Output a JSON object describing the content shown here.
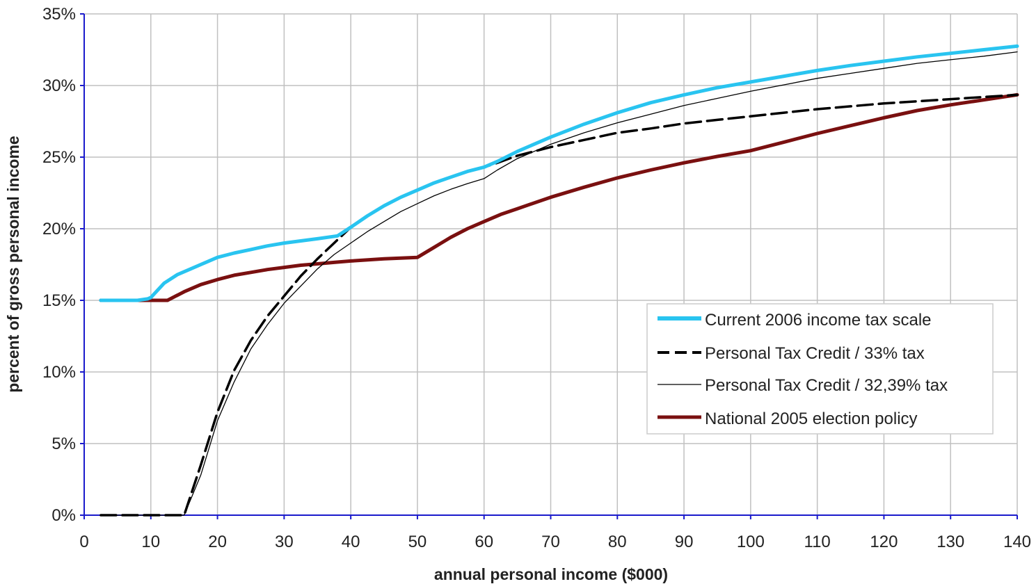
{
  "chart_data": {
    "type": "line",
    "xlabel": "annual personal income ($000)",
    "ylabel": "percent of gross personal income",
    "xlim": [
      0,
      140
    ],
    "ylim": [
      0,
      35
    ],
    "x_ticks": [
      0,
      10,
      20,
      30,
      40,
      50,
      60,
      70,
      80,
      90,
      100,
      110,
      120,
      130,
      140
    ],
    "y_ticks": [
      0,
      5,
      10,
      15,
      20,
      25,
      30,
      35
    ],
    "y_tick_labels": [
      "0%",
      "5%",
      "10%",
      "15%",
      "20%",
      "25%",
      "30%",
      "35%"
    ],
    "grid": true,
    "legend_position": "lower-right",
    "series": [
      {
        "name": "Current 2006 income tax scale",
        "color": "#29c4f0",
        "style": "solid-thick",
        "points": [
          [
            2.5,
            15
          ],
          [
            5,
            15
          ],
          [
            8,
            15
          ],
          [
            9.5,
            15.1
          ],
          [
            10,
            15.2
          ],
          [
            12,
            16.2
          ],
          [
            14,
            16.8
          ],
          [
            16,
            17.2
          ],
          [
            18,
            17.6
          ],
          [
            20,
            18
          ],
          [
            22.5,
            18.3
          ],
          [
            25,
            18.55
          ],
          [
            27.5,
            18.8
          ],
          [
            30,
            19
          ],
          [
            32.5,
            19.15
          ],
          [
            35,
            19.3
          ],
          [
            38,
            19.5
          ],
          [
            40,
            20.1
          ],
          [
            42.5,
            20.9
          ],
          [
            45,
            21.6
          ],
          [
            47.5,
            22.2
          ],
          [
            50,
            22.7
          ],
          [
            52.5,
            23.2
          ],
          [
            55,
            23.6
          ],
          [
            57.5,
            24
          ],
          [
            60,
            24.3
          ],
          [
            62,
            24.7
          ],
          [
            65,
            25.4
          ],
          [
            70,
            26.4
          ],
          [
            75,
            27.3
          ],
          [
            80,
            28.1
          ],
          [
            85,
            28.8
          ],
          [
            90,
            29.35
          ],
          [
            95,
            29.85
          ],
          [
            100,
            30.25
          ],
          [
            105,
            30.65
          ],
          [
            110,
            31.05
          ],
          [
            115,
            31.4
          ],
          [
            120,
            31.7
          ],
          [
            125,
            32
          ],
          [
            130,
            32.25
          ],
          [
            135,
            32.5
          ],
          [
            140,
            32.75
          ]
        ]
      },
      {
        "name": "Personal Tax Credit / 33% tax",
        "color": "#000000",
        "style": "dashed",
        "points": [
          [
            2.5,
            0
          ],
          [
            5,
            0
          ],
          [
            10,
            0
          ],
          [
            15,
            0
          ],
          [
            17.5,
            3.5
          ],
          [
            20,
            7.2
          ],
          [
            22.5,
            10.1
          ],
          [
            25,
            12.2
          ],
          [
            27.5,
            13.9
          ],
          [
            30,
            15.3
          ],
          [
            32.5,
            16.7
          ],
          [
            35,
            17.9
          ],
          [
            37.5,
            19
          ],
          [
            40,
            20.1
          ],
          [
            42.5,
            20.9
          ],
          [
            45,
            21.6
          ],
          [
            47.5,
            22.2
          ],
          [
            50,
            22.7
          ],
          [
            52.5,
            23.2
          ],
          [
            55,
            23.6
          ],
          [
            57.5,
            24
          ],
          [
            60,
            24.3
          ],
          [
            62,
            24.6
          ],
          [
            65,
            25.1
          ],
          [
            70,
            25.7
          ],
          [
            75,
            26.2
          ],
          [
            80,
            26.7
          ],
          [
            85,
            27
          ],
          [
            90,
            27.35
          ],
          [
            95,
            27.6
          ],
          [
            100,
            27.85
          ],
          [
            105,
            28.1
          ],
          [
            110,
            28.35
          ],
          [
            115,
            28.55
          ],
          [
            120,
            28.75
          ],
          [
            125,
            28.9
          ],
          [
            130,
            29.05
          ],
          [
            135,
            29.2
          ],
          [
            140,
            29.35
          ]
        ]
      },
      {
        "name": "Personal Tax Credit / 32,39% tax",
        "color": "#000000",
        "style": "solid-thin",
        "points": [
          [
            2.5,
            0
          ],
          [
            5,
            0
          ],
          [
            10,
            0
          ],
          [
            15,
            0
          ],
          [
            17.5,
            2.8
          ],
          [
            20,
            6.6
          ],
          [
            22.5,
            9.3
          ],
          [
            25,
            11.6
          ],
          [
            27.5,
            13.3
          ],
          [
            30,
            14.8
          ],
          [
            32.5,
            16
          ],
          [
            35,
            17.2
          ],
          [
            37.5,
            18.2
          ],
          [
            40,
            19
          ],
          [
            42.5,
            19.8
          ],
          [
            45,
            20.5
          ],
          [
            47.5,
            21.2
          ],
          [
            50,
            21.75
          ],
          [
            52.5,
            22.3
          ],
          [
            55,
            22.75
          ],
          [
            57.5,
            23.15
          ],
          [
            60,
            23.5
          ],
          [
            62,
            24.1
          ],
          [
            65,
            24.9
          ],
          [
            70,
            25.9
          ],
          [
            75,
            26.7
          ],
          [
            80,
            27.4
          ],
          [
            85,
            28
          ],
          [
            90,
            28.6
          ],
          [
            95,
            29.1
          ],
          [
            100,
            29.6
          ],
          [
            105,
            30.05
          ],
          [
            110,
            30.5
          ],
          [
            115,
            30.85
          ],
          [
            120,
            31.2
          ],
          [
            125,
            31.55
          ],
          [
            130,
            31.8
          ],
          [
            135,
            32.05
          ],
          [
            140,
            32.35
          ]
        ]
      },
      {
        "name": "National 2005 election policy",
        "color": "#7a1010",
        "style": "solid-thick",
        "points": [
          [
            2.5,
            15
          ],
          [
            5,
            15
          ],
          [
            10,
            15
          ],
          [
            12.5,
            15
          ],
          [
            15,
            15.6
          ],
          [
            17.5,
            16.1
          ],
          [
            20,
            16.45
          ],
          [
            22.5,
            16.75
          ],
          [
            25,
            16.95
          ],
          [
            27.5,
            17.15
          ],
          [
            30,
            17.3
          ],
          [
            32.5,
            17.45
          ],
          [
            35,
            17.55
          ],
          [
            37.5,
            17.65
          ],
          [
            40,
            17.75
          ],
          [
            45,
            17.9
          ],
          [
            50,
            18
          ],
          [
            52.5,
            18.7
          ],
          [
            55,
            19.4
          ],
          [
            57.5,
            20
          ],
          [
            60,
            20.5
          ],
          [
            62.5,
            21
          ],
          [
            65,
            21.4
          ],
          [
            70,
            22.2
          ],
          [
            75,
            22.9
          ],
          [
            80,
            23.55
          ],
          [
            85,
            24.1
          ],
          [
            90,
            24.6
          ],
          [
            95,
            25.05
          ],
          [
            100,
            25.45
          ],
          [
            105,
            26.05
          ],
          [
            110,
            26.65
          ],
          [
            115,
            27.2
          ],
          [
            120,
            27.75
          ],
          [
            125,
            28.25
          ],
          [
            130,
            28.65
          ],
          [
            135,
            29
          ],
          [
            140,
            29.35
          ]
        ]
      }
    ]
  }
}
